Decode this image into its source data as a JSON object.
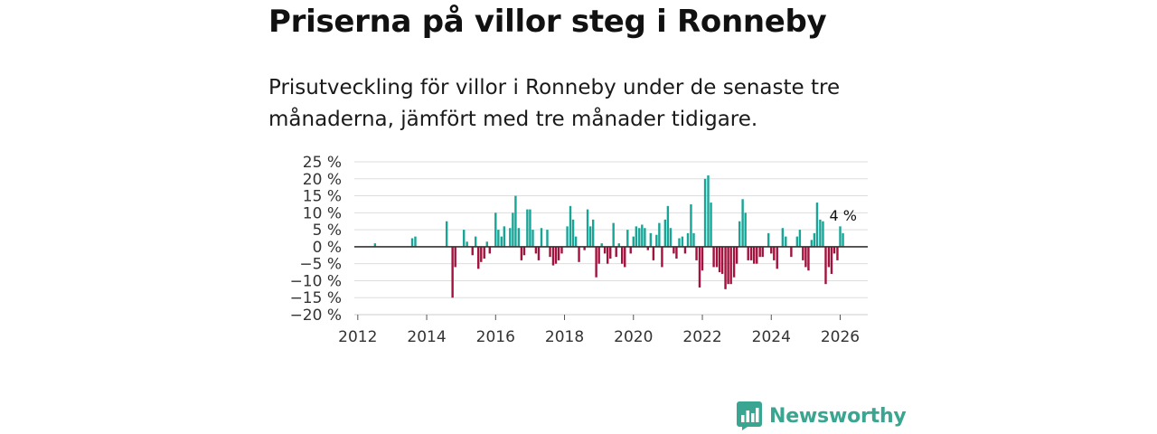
{
  "title": "Priserna på villor steg i Ronneby",
  "subtitle": "Prisutveckling för villor i Ronneby under de senaste tre månaderna, jämfört med tre månader tidigare.",
  "brand": {
    "name": "Newsworthy",
    "icon": "bar-chart-speech-bubble-icon"
  },
  "colors": {
    "positive": "#17a597",
    "negative": "#a3123e",
    "grid": "#dddddd",
    "zero": "#333333",
    "brand": "#3aa590"
  },
  "chart_data": {
    "type": "bar",
    "title": "",
    "xlabel": "",
    "ylabel": "",
    "xlim": [
      2011.9,
      2026.8
    ],
    "ylim": [
      -20,
      25
    ],
    "y_ticks": [
      25,
      20,
      15,
      10,
      5,
      0,
      -5,
      -10,
      -15,
      -20
    ],
    "y_tick_labels": [
      "25 %",
      "20 %",
      "15 %",
      "10 %",
      "5 %",
      "0 %",
      "−5 %",
      "−10 %",
      "−15 %",
      "−20 %"
    ],
    "x_ticks": [
      2012,
      2014,
      2016,
      2018,
      2020,
      2022,
      2024,
      2026
    ],
    "x_tick_labels": [
      "2012",
      "2014",
      "2016",
      "2018",
      "2020",
      "2022",
      "2024",
      "2026"
    ],
    "annotation": {
      "label": "4 %",
      "x": 2026.0,
      "y": 4
    },
    "series": [
      {
        "name": "Prisutveckling",
        "x": [
          2012.5,
          2013.58,
          2013.67,
          2014.58,
          2014.75,
          2014.83,
          2015.08,
          2015.17,
          2015.33,
          2015.42,
          2015.5,
          2015.58,
          2015.67,
          2015.75,
          2015.83,
          2016.0,
          2016.08,
          2016.17,
          2016.25,
          2016.42,
          2016.5,
          2016.58,
          2016.67,
          2016.75,
          2016.83,
          2016.92,
          2017.0,
          2017.08,
          2017.17,
          2017.25,
          2017.33,
          2017.5,
          2017.58,
          2017.67,
          2017.75,
          2017.83,
          2017.92,
          2018.08,
          2018.17,
          2018.25,
          2018.33,
          2018.42,
          2018.58,
          2018.67,
          2018.75,
          2018.83,
          2018.92,
          2019.0,
          2019.08,
          2019.17,
          2019.25,
          2019.33,
          2019.42,
          2019.5,
          2019.58,
          2019.67,
          2019.75,
          2019.83,
          2019.92,
          2020.0,
          2020.08,
          2020.17,
          2020.25,
          2020.33,
          2020.42,
          2020.5,
          2020.58,
          2020.67,
          2020.75,
          2020.83,
          2020.92,
          2021.0,
          2021.08,
          2021.17,
          2021.25,
          2021.33,
          2021.42,
          2021.5,
          2021.58,
          2021.67,
          2021.75,
          2021.83,
          2021.92,
          2022.0,
          2022.08,
          2022.17,
          2022.25,
          2022.33,
          2022.42,
          2022.5,
          2022.58,
          2022.67,
          2022.75,
          2022.83,
          2022.92,
          2023.0,
          2023.08,
          2023.17,
          2023.25,
          2023.33,
          2023.42,
          2023.5,
          2023.58,
          2023.67,
          2023.75,
          2023.92,
          2024.0,
          2024.08,
          2024.17,
          2024.33,
          2024.42,
          2024.58,
          2024.75,
          2024.83,
          2024.92,
          2025.0,
          2025.08,
          2025.17,
          2025.25,
          2025.33,
          2025.42,
          2025.5,
          2025.58,
          2025.67,
          2025.75,
          2025.83,
          2025.92,
          2026.0,
          2026.08
        ],
        "values": [
          1,
          2.5,
          3,
          7.5,
          -15,
          -6,
          5,
          1.5,
          -2.5,
          3,
          -6.5,
          -4.5,
          -3.5,
          1.5,
          -2,
          10,
          5,
          3,
          6,
          5.5,
          10,
          15,
          5.5,
          -4,
          -2.5,
          11,
          11,
          5,
          -2,
          -4,
          5.5,
          5,
          -3,
          -5.5,
          -5,
          -4,
          -2,
          6,
          12,
          8,
          3,
          -4.5,
          -1,
          11,
          6,
          8,
          -9,
          -5,
          1,
          -2,
          -5,
          -3.5,
          7,
          -3,
          1,
          -5,
          -6,
          5,
          -2,
          3,
          6,
          5.5,
          6.5,
          5.5,
          -1,
          4,
          -4,
          3.5,
          7,
          -6,
          8,
          12,
          5.5,
          -2,
          -3.5,
          2.5,
          3,
          -2,
          4,
          12.5,
          4,
          -4,
          -12,
          -7,
          20,
          21,
          13,
          -6,
          -6,
          -7.5,
          -8,
          -12.5,
          -11,
          -11,
          -9,
          -5,
          7.5,
          14,
          10,
          -4,
          -4,
          -5,
          -5,
          -3,
          -3,
          4,
          -2,
          -4,
          -6.5,
          5.5,
          3,
          -3,
          3,
          5,
          -4,
          -6,
          -7,
          2,
          4,
          13,
          8,
          7.5,
          -11,
          -6,
          -8,
          -2,
          -4,
          6,
          4
        ]
      }
    ]
  }
}
